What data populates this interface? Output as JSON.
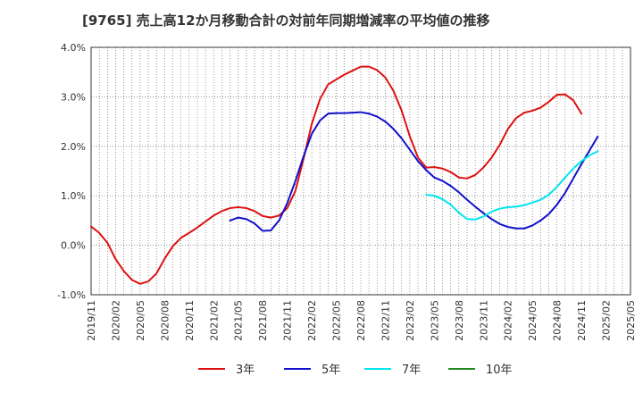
{
  "chart_data": {
    "type": "line",
    "title": "[9765]  売上高12か月移動合計の対前年同期増減率の平均値の推移",
    "xlabel": "",
    "ylabel": "",
    "ylim": [
      -1.0,
      4.0
    ],
    "yticks": [
      -1.0,
      0.0,
      1.0,
      2.0,
      3.0,
      4.0
    ],
    "ytick_labels": [
      "-1.0%",
      "0.0%",
      "1.0%",
      "2.0%",
      "3.0%",
      "4.0%"
    ],
    "x_start": "2019-11",
    "x_end": "2025-05",
    "xtick_labels": [
      "2019/11",
      "2020/02",
      "2020/05",
      "2020/08",
      "2020/11",
      "2021/02",
      "2021/05",
      "2021/08",
      "2021/11",
      "2022/02",
      "2022/05",
      "2022/08",
      "2022/11",
      "2023/02",
      "2023/05",
      "2023/08",
      "2023/11",
      "2024/02",
      "2024/05",
      "2024/08",
      "2024/11",
      "2025/02",
      "2025/05"
    ],
    "grid": true,
    "legend_position": "bottom",
    "series": [
      {
        "name": "3年",
        "color": "#dd1111",
        "start": "2019-11",
        "values": [
          0.38,
          0.25,
          0.05,
          -0.28,
          -0.52,
          -0.7,
          -0.78,
          -0.73,
          -0.57,
          -0.27,
          -0.02,
          0.15,
          0.25,
          0.36,
          0.48,
          0.6,
          0.69,
          0.75,
          0.77,
          0.75,
          0.69,
          0.59,
          0.56,
          0.6,
          0.75,
          1.1,
          1.75,
          2.45,
          2.95,
          3.25,
          3.35,
          3.45,
          3.53,
          3.61,
          3.61,
          3.54,
          3.39,
          3.12,
          2.72,
          2.2,
          1.77,
          1.57,
          1.58,
          1.55,
          1.48,
          1.37,
          1.35,
          1.42,
          1.57,
          1.77,
          2.03,
          2.35,
          2.57,
          2.68,
          2.72,
          2.78,
          2.9,
          3.04,
          3.05,
          2.93,
          2.66
        ]
      },
      {
        "name": "5年",
        "color": "#1111cc",
        "start": "2021-04",
        "values": [
          0.5,
          0.56,
          0.53,
          0.44,
          0.29,
          0.3,
          0.5,
          0.85,
          1.3,
          1.8,
          2.25,
          2.52,
          2.66,
          2.67,
          2.67,
          2.68,
          2.69,
          2.66,
          2.6,
          2.5,
          2.35,
          2.16,
          1.93,
          1.7,
          1.52,
          1.37,
          1.3,
          1.2,
          1.07,
          0.92,
          0.78,
          0.65,
          0.53,
          0.43,
          0.37,
          0.34,
          0.34,
          0.4,
          0.5,
          0.63,
          0.82,
          1.06,
          1.35,
          1.64,
          1.92,
          2.2
        ]
      },
      {
        "name": "7年",
        "color": "#00e5ee",
        "start": "2023-04",
        "values": [
          1.02,
          1.0,
          0.93,
          0.82,
          0.66,
          0.53,
          0.52,
          0.58,
          0.68,
          0.74,
          0.77,
          0.78,
          0.81,
          0.86,
          0.92,
          1.02,
          1.18,
          1.37,
          1.55,
          1.7,
          1.82,
          1.9
        ]
      },
      {
        "name": "10年",
        "color": "#228822",
        "start": "2024-11",
        "values": []
      }
    ]
  }
}
